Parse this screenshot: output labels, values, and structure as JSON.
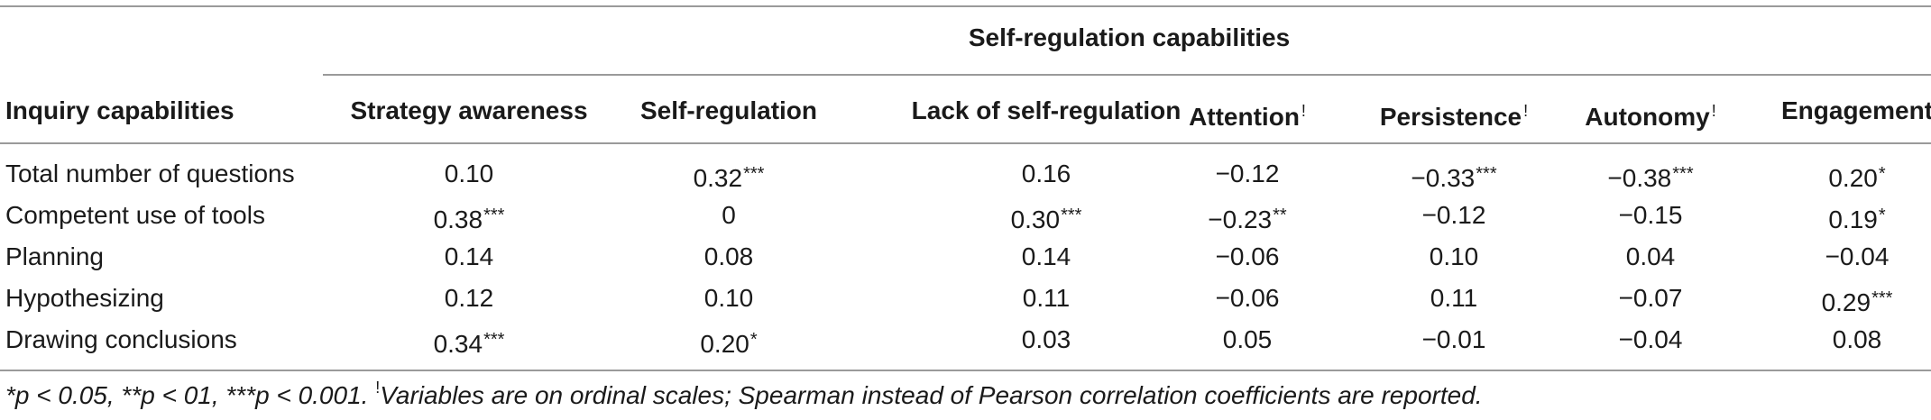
{
  "table": {
    "group_header": "Self-regulation capabilities",
    "row_header": "Inquiry capabilities",
    "columns": [
      {
        "label": "Strategy awareness",
        "mark": ""
      },
      {
        "label": "Self-regulation",
        "mark": ""
      },
      {
        "label": "Lack of self-regulation",
        "mark": ""
      },
      {
        "label": "Attention",
        "mark": "!"
      },
      {
        "label": "Persistence",
        "mark": "!"
      },
      {
        "label": "Autonomy",
        "mark": "!"
      },
      {
        "label": "Engagement",
        "mark": ""
      }
    ],
    "rows": [
      {
        "label": "Total number of questions",
        "values": [
          [
            "0.10",
            ""
          ],
          [
            "0.32",
            "***"
          ],
          [
            "0.16",
            ""
          ],
          [
            "−0.12",
            ""
          ],
          [
            "−0.33",
            "***"
          ],
          [
            "−0.38",
            "***"
          ],
          [
            "0.20",
            "*"
          ]
        ]
      },
      {
        "label": "Competent use of tools",
        "values": [
          [
            "0.38",
            "***"
          ],
          [
            "0",
            ""
          ],
          [
            "0.30",
            "***"
          ],
          [
            "−0.23",
            "**"
          ],
          [
            "−0.12",
            ""
          ],
          [
            "−0.15",
            ""
          ],
          [
            "0.19",
            "*"
          ]
        ]
      },
      {
        "label": "Planning",
        "values": [
          [
            "0.14",
            ""
          ],
          [
            "0.08",
            ""
          ],
          [
            "0.14",
            ""
          ],
          [
            "−0.06",
            ""
          ],
          [
            "0.10",
            ""
          ],
          [
            "0.04",
            ""
          ],
          [
            "−0.04",
            ""
          ]
        ]
      },
      {
        "label": "Hypothesizing",
        "values": [
          [
            "0.12",
            ""
          ],
          [
            "0.10",
            ""
          ],
          [
            "0.11",
            ""
          ],
          [
            "−0.06",
            ""
          ],
          [
            "0.11",
            ""
          ],
          [
            "−0.07",
            ""
          ],
          [
            "0.29",
            "***"
          ]
        ]
      },
      {
        "label": "Drawing conclusions",
        "values": [
          [
            "0.34",
            "***"
          ],
          [
            "0.20",
            "*"
          ],
          [
            "0.03",
            ""
          ],
          [
            "0.05",
            ""
          ],
          [
            "−0.01",
            ""
          ],
          [
            "−0.04",
            ""
          ],
          [
            "0.08",
            ""
          ]
        ]
      }
    ]
  },
  "footnote": {
    "significance": "*p < 0.05, **p < 01, ***p < 0.001.",
    "mark": "!",
    "note": "Variables are on ordinal scales; Spearman instead of Pearson correlation coefficients are reported."
  }
}
